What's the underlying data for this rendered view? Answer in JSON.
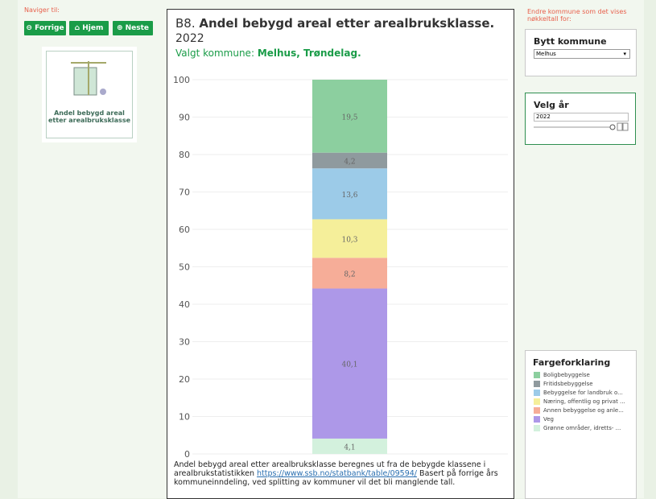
{
  "navigation": {
    "label": "Naviger til:",
    "buttons": [
      "Forrige",
      "Hjem",
      "Neste"
    ]
  },
  "card": {
    "title": "Andel bebygd areal etter arealbruksklasse"
  },
  "chart_data": {
    "type": "stacked-bar",
    "number": "B8.",
    "title": "Andel bebygd areal etter arealbruksklasse.",
    "subtitle": "2022",
    "municipality_label": "Valgt kommune:",
    "municipality": "Melhus, Trøndelag.",
    "categories": [
      null
    ],
    "series": [
      {
        "name": "Boligbebyggelse",
        "color": "#8ccf9f",
        "values": [
          19.5
        ],
        "value_labels": [
          "19,5"
        ]
      },
      {
        "name": "Fritidsbebyggelse",
        "color": "#8f9a9e",
        "values": [
          4.2
        ],
        "value_labels": [
          "4,2"
        ]
      },
      {
        "name": "Bebyggelse for landbruk o...",
        "color": "#9ccbe8",
        "values": [
          13.6
        ],
        "value_labels": [
          "13,6"
        ]
      },
      {
        "name": "Næring, offentlig og privat ...",
        "color": "#f5ef9a",
        "values": [
          10.3
        ],
        "value_labels": [
          "10,3"
        ]
      },
      {
        "name": "Annen bebyggelse og anle...",
        "color": "#f6ad98",
        "values": [
          8.2
        ],
        "value_labels": [
          "8,2"
        ]
      },
      {
        "name": "Veg",
        "color": "#ad98e8",
        "values": [
          40.1
        ],
        "value_labels": [
          "40,1"
        ]
      },
      {
        "name": "Grønne områder, idretts- ...",
        "color": "#d3f1dd",
        "values": [
          4.1
        ],
        "value_labels": [
          "4,1"
        ]
      }
    ],
    "ylim": [
      0,
      100
    ],
    "yticks": [
      0,
      10,
      20,
      30,
      40,
      50,
      60,
      70,
      80,
      90,
      100
    ],
    "grid": true,
    "legend_title": "Fargeforklaring",
    "note_before": "Andel bebygd areal etter arealbruksklasse beregnes ut fra de bebygde klassene i arealbrukstatistikken",
    "note_link": "https://www.ssb.no/statbank/table/09594/",
    "note_after": "Basert på forrige års kommuneinndeling, ved splitting av kommuner vil det bli manglende tall."
  },
  "filters": {
    "label": "Endre kommune som det vises nøkkeltall for:",
    "municipality_title": "Bytt kommune",
    "municipality_value": "Melhus",
    "year_title": "Velg år",
    "year_value": "2022"
  }
}
